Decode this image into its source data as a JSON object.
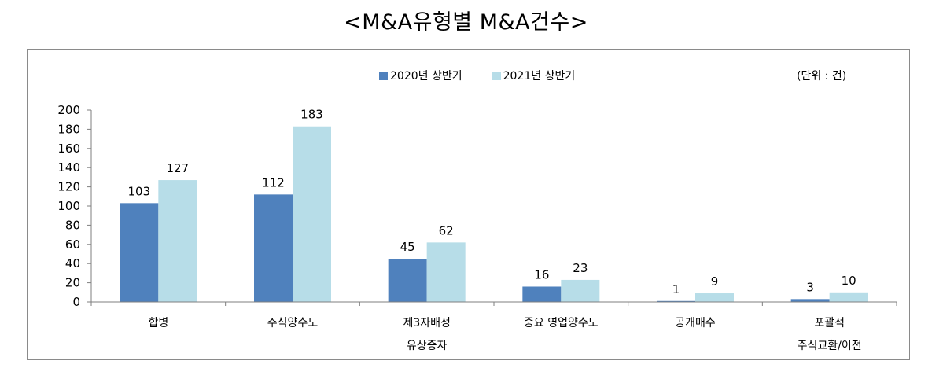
{
  "title": "<M&A유형별 M&A건수>",
  "unit_label": "(단위 : 건)",
  "colors": {
    "series1": "#4f81bd",
    "series2": "#b7dde8",
    "axis": "#7f7f7f"
  },
  "chart_data": {
    "type": "bar",
    "title": "<M&A유형별 M&A건수>",
    "categories": [
      [
        "합병"
      ],
      [
        "주식양수도"
      ],
      [
        "제3자배정",
        "유상증자"
      ],
      [
        "중요 영업양수도"
      ],
      [
        "공개매수"
      ],
      [
        "포괄적",
        "주식교환/이전"
      ]
    ],
    "series": [
      {
        "name": "2020년 상반기",
        "values": [
          103,
          112,
          45,
          16,
          1,
          3
        ]
      },
      {
        "name": "2021년 상반기",
        "values": [
          127,
          183,
          62,
          23,
          9,
          10
        ]
      }
    ],
    "ylim": [
      0,
      200
    ],
    "yticks": [
      0,
      20,
      40,
      60,
      80,
      100,
      120,
      140,
      160,
      180,
      200
    ],
    "grid": false,
    "legend_position": "top-center"
  }
}
